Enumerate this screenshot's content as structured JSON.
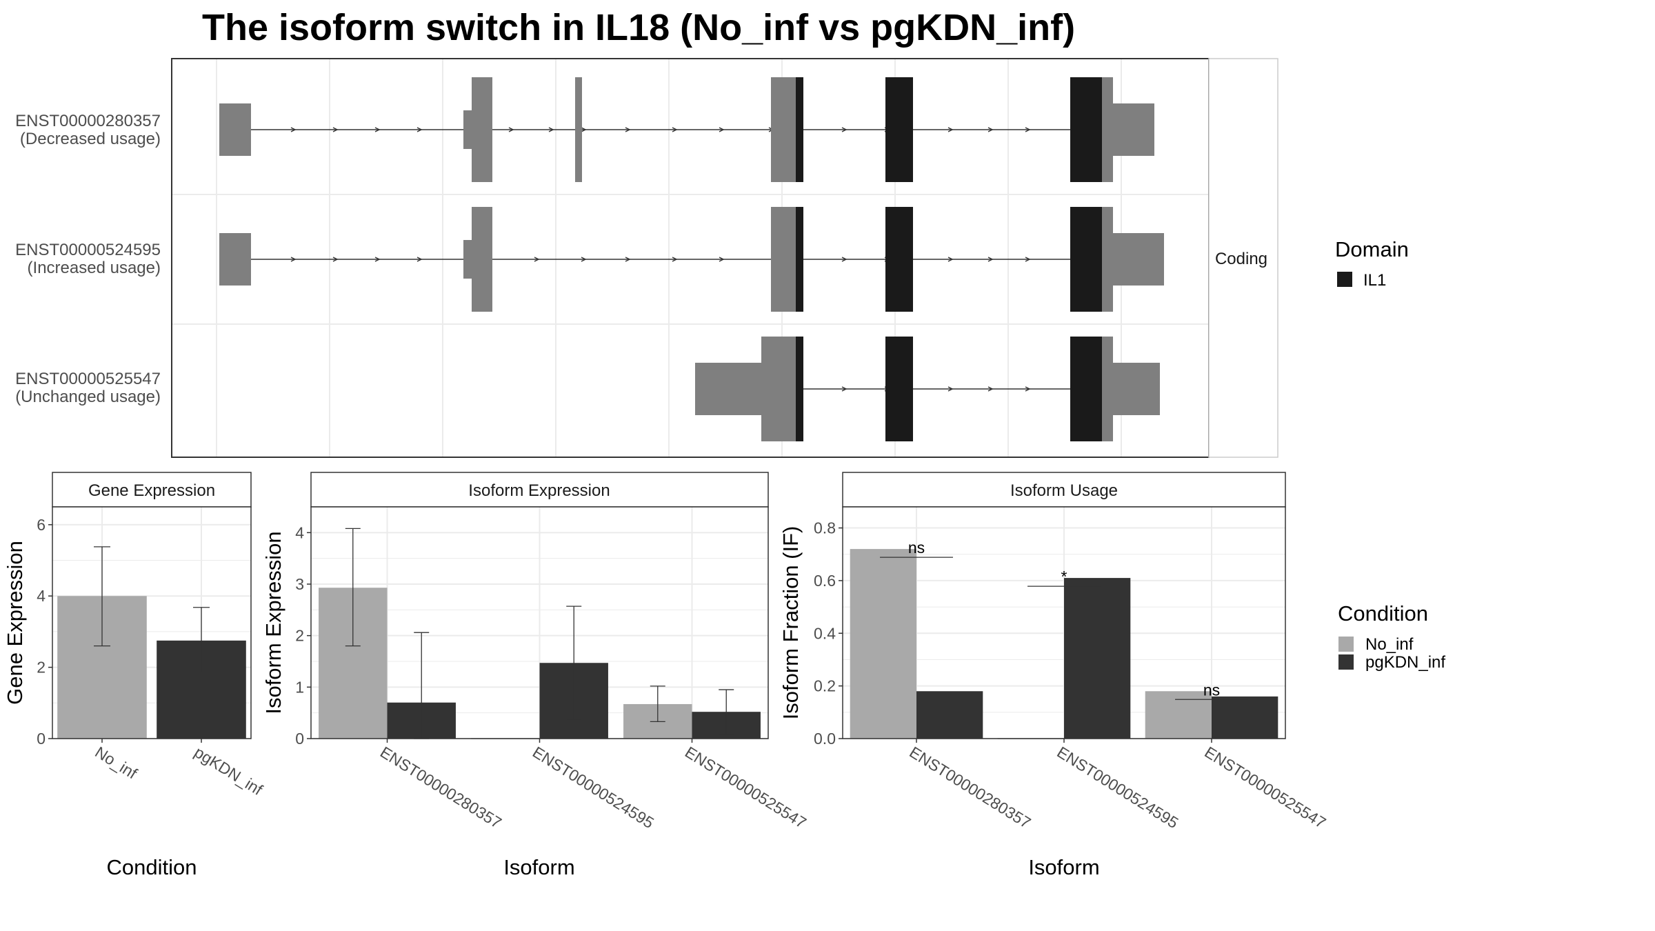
{
  "title": "The isoform switch in IL18 (No_inf vs pgKDN_inf)",
  "colors": {
    "utr": "#7f7f7f",
    "domain": "#1a1a1a",
    "no_inf": "#a9a9a9",
    "pgkdn_inf": "#333333",
    "grid": "#ebebeb",
    "border": "#333333"
  },
  "structure": {
    "strip_label": "Coding",
    "isoforms": [
      {
        "id": "ENST00000280357",
        "usage": "(Decreased usage)"
      },
      {
        "id": "ENST00000524595",
        "usage": "(Increased usage)"
      },
      {
        "id": "ENST00000525547",
        "usage": "(Unchanged usage)"
      }
    ],
    "legend": {
      "title": "Domain",
      "items": [
        "IL1"
      ]
    }
  },
  "chart_data": [
    {
      "type": "bar",
      "title": "Gene Expression",
      "xlabel": "Condition",
      "ylabel": "Gene Expression",
      "categories": [
        "No_inf",
        "pgKDN_inf"
      ],
      "values": [
        4.0,
        2.75
      ],
      "error_low": [
        2.6,
        1.85
      ],
      "error_high": [
        5.38,
        3.68
      ],
      "ylim": [
        0,
        6.5
      ],
      "yticks": [
        0,
        2,
        4,
        6
      ]
    },
    {
      "type": "bar",
      "title": "Isoform Expression",
      "xlabel": "Isoform",
      "ylabel": "Isoform Expression",
      "categories": [
        "ENST00000280357",
        "ENST00000524595",
        "ENST00000525547"
      ],
      "series": [
        {
          "name": "No_inf",
          "values": [
            2.93,
            0.0,
            0.67
          ],
          "error_low": [
            1.8,
            null,
            0.33
          ],
          "error_high": [
            4.08,
            null,
            1.02
          ]
        },
        {
          "name": "pgKDN_inf",
          "values": [
            0.7,
            1.47,
            0.52
          ],
          "error_low": [
            0.0,
            0.38,
            0.08
          ],
          "error_high": [
            2.06,
            2.57,
            0.95
          ]
        }
      ],
      "ylim": [
        0,
        4.5
      ],
      "yticks": [
        0,
        1,
        2,
        3,
        4
      ]
    },
    {
      "type": "bar",
      "title": "Isoform Usage",
      "xlabel": "Isoform",
      "ylabel": "Isoform Fraction (IF)",
      "categories": [
        "ENST00000280357",
        "ENST00000524595",
        "ENST00000525547"
      ],
      "series": [
        {
          "name": "No_inf",
          "values": [
            0.72,
            0.0,
            0.18
          ]
        },
        {
          "name": "pgKDN_inf",
          "values": [
            0.18,
            0.61,
            0.16
          ]
        }
      ],
      "significance": [
        "ns",
        "*",
        "ns"
      ],
      "ylim": [
        0,
        0.88
      ],
      "yticks": [
        "0.0",
        "0.2",
        "0.4",
        "0.6",
        "0.8"
      ]
    }
  ],
  "condition_legend": {
    "title": "Condition",
    "items": [
      "No_inf",
      "pgKDN_inf"
    ]
  }
}
